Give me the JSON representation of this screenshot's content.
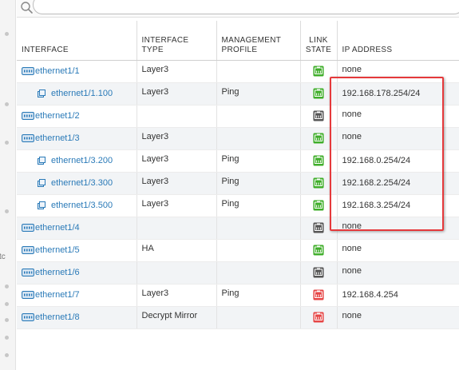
{
  "search": {
    "placeholder": "",
    "value": ""
  },
  "columns": [
    "INTERFACE",
    "INTERFACE TYPE",
    "MANAGEMENT PROFILE",
    "LINK STATE",
    "IP ADDRESS"
  ],
  "gutter_text": "tc",
  "colors": {
    "link": "#2a7ab8",
    "up": "#3fae2a",
    "down": "#e64545",
    "unknown": "#555555",
    "highlight": "#e5393b"
  },
  "rows": [
    {
      "interface": "ethernet1/1",
      "sub": false,
      "type": "Layer3",
      "profile": "",
      "link": "up",
      "ip": "none"
    },
    {
      "interface": "ethernet1/1.100",
      "sub": true,
      "type": "Layer3",
      "profile": "Ping",
      "link": "up",
      "ip": "192.168.178.254/24"
    },
    {
      "interface": "ethernet1/2",
      "sub": false,
      "type": "",
      "profile": "",
      "link": "unknown",
      "ip": "none"
    },
    {
      "interface": "ethernet1/3",
      "sub": false,
      "type": "Layer3",
      "profile": "",
      "link": "up",
      "ip": "none"
    },
    {
      "interface": "ethernet1/3.200",
      "sub": true,
      "type": "Layer3",
      "profile": "Ping",
      "link": "up",
      "ip": "192.168.0.254/24"
    },
    {
      "interface": "ethernet1/3.300",
      "sub": true,
      "type": "Layer3",
      "profile": "Ping",
      "link": "up",
      "ip": "192.168.2.254/24"
    },
    {
      "interface": "ethernet1/3.500",
      "sub": true,
      "type": "Layer3",
      "profile": "Ping",
      "link": "up",
      "ip": "192.168.3.254/24"
    },
    {
      "interface": "ethernet1/4",
      "sub": false,
      "type": "",
      "profile": "",
      "link": "unknown",
      "ip": "none"
    },
    {
      "interface": "ethernet1/5",
      "sub": false,
      "type": "HA",
      "profile": "",
      "link": "up",
      "ip": "none"
    },
    {
      "interface": "ethernet1/6",
      "sub": false,
      "type": "",
      "profile": "",
      "link": "unknown",
      "ip": "none"
    },
    {
      "interface": "ethernet1/7",
      "sub": false,
      "type": "Layer3",
      "profile": "Ping",
      "link": "down",
      "ip": "192.168.4.254"
    },
    {
      "interface": "ethernet1/8",
      "sub": false,
      "type": "Decrypt Mirror",
      "profile": "",
      "link": "down",
      "ip": "none"
    }
  ]
}
